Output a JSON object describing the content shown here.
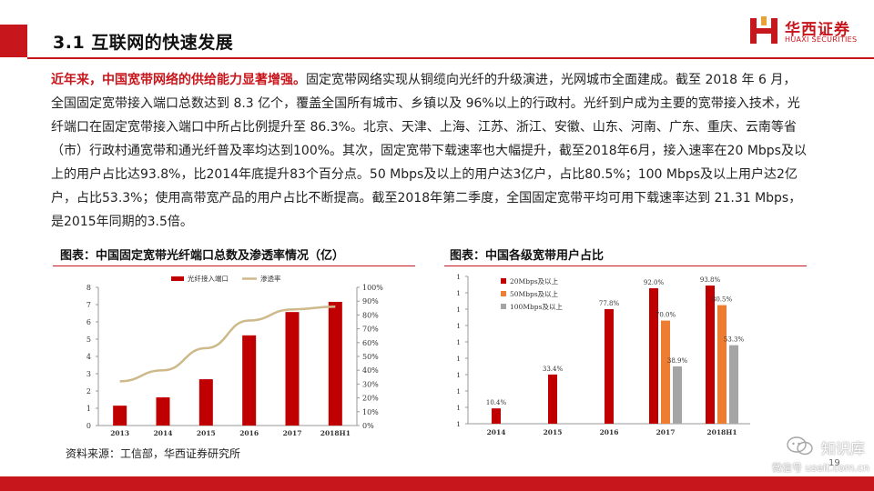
{
  "header": {
    "title": "3.1 互联网的快速发展",
    "logo": {
      "name_cn": "华西证券",
      "name_en": "HUAXI SECURITIES",
      "accent": "#c8161d"
    }
  },
  "body": {
    "lead": "近年来，中国宽带网络的供给能力显著增强。",
    "text": "固定宽带网络实现从铜缆向光纤的升级演进，光网城市全面建成。截至 2018 年 6 月，全国固定宽带接入端口总数达到 8.3 亿个，覆盖全国所有城市、乡镇以及 96%以上的行政村。光纤到户成为主要的宽带接入技术，光纤端口在固定宽带接入端口中所占比例提升至 86.3%。北京、天津、上海、江苏、浙江、安徽、山东、河南、广东、重庆、云南等省（市）行政村通宽带和通光纤普及率均达到100%。其次，固定宽带下载速率也大幅提升，截至2018年6月，接入速率在20 Mbps及以上的用户占比达93.8%，比2014年底提升83个百分点。50 Mbps及以上的用户达3亿户，占比80.5%；100 Mbps及以上用户达2亿户，占比53.3%；使用高带宽产品的用户占比不断提高。截至2018年第二季度，全国固定宽带平均可用下载速率达到 21.31 Mbps，是2015年同期的3.5倍。"
  },
  "figures": {
    "left_title": "图表：中国固定宽带光纤端口总数及渗透率情况（亿）",
    "right_title": "图表：中国各级宽带用户占比"
  },
  "chart_data": [
    {
      "type": "bar",
      "title": "图表：中国固定宽带光纤端口总数及渗透率情况（亿）",
      "categories": [
        "2013",
        "2014",
        "2015",
        "2016",
        "2017",
        "2018H1"
      ],
      "series": [
        {
          "name": "光纤接入端口",
          "type": "bar",
          "axis": "left",
          "color": "#c00000",
          "values": [
            1.15,
            1.63,
            2.68,
            5.22,
            6.57,
            7.16
          ]
        },
        {
          "name": "渗透率",
          "type": "line",
          "axis": "right",
          "color": "#cdb98a",
          "values": [
            32,
            40,
            56,
            76,
            84,
            86
          ]
        }
      ],
      "left_axis": {
        "ticks": [
          "0",
          "1",
          "2",
          "3",
          "4",
          "5",
          "6",
          "7",
          "8"
        ],
        "range": [
          0,
          8
        ]
      },
      "right_axis": {
        "ticks": [
          "0%",
          "10%",
          "20%",
          "30%",
          "40%",
          "50%",
          "60%",
          "70%",
          "80%",
          "90%",
          "100%"
        ],
        "range": [
          0,
          100
        ]
      },
      "legend_position": "top",
      "grid": false
    },
    {
      "type": "bar",
      "title": "图表：中国各级宽带用户占比",
      "categories": [
        "2014",
        "2015",
        "2016",
        "2017",
        "2018H1"
      ],
      "series": [
        {
          "name": "20Mbps及以上",
          "color": "#c00000",
          "values": [
            10.4,
            33.4,
            77.8,
            92.0,
            93.8
          ],
          "labels": [
            "10.4%",
            "33.4%",
            "77.8%",
            "92.0%",
            "93.8%"
          ]
        },
        {
          "name": "50Mbps及以上",
          "color": "#ed7d31",
          "values": [
            null,
            null,
            null,
            70.0,
            80.5
          ],
          "labels": [
            "",
            "",
            "",
            "70.0%",
            "80.5%"
          ]
        },
        {
          "name": "100Mbps及以上",
          "color": "#a5a5a5",
          "values": [
            null,
            null,
            null,
            38.9,
            53.3
          ],
          "labels": [
            "",
            "",
            "",
            "38.9%",
            "53.3%"
          ]
        }
      ],
      "y_axis": {
        "ticks": [
          "1",
          "1",
          "1",
          "1",
          "1",
          "1",
          "1",
          "1",
          "1",
          "1"
        ],
        "range": [
          0,
          100
        ]
      },
      "legend_position": "top-left",
      "grid": false
    }
  ],
  "footer": {
    "source": "资料来源：工信部，华西证券研究所",
    "page_number": "19"
  },
  "watermark": {
    "title": "知识库",
    "subtitle": "微信号 useit.com.cn"
  }
}
